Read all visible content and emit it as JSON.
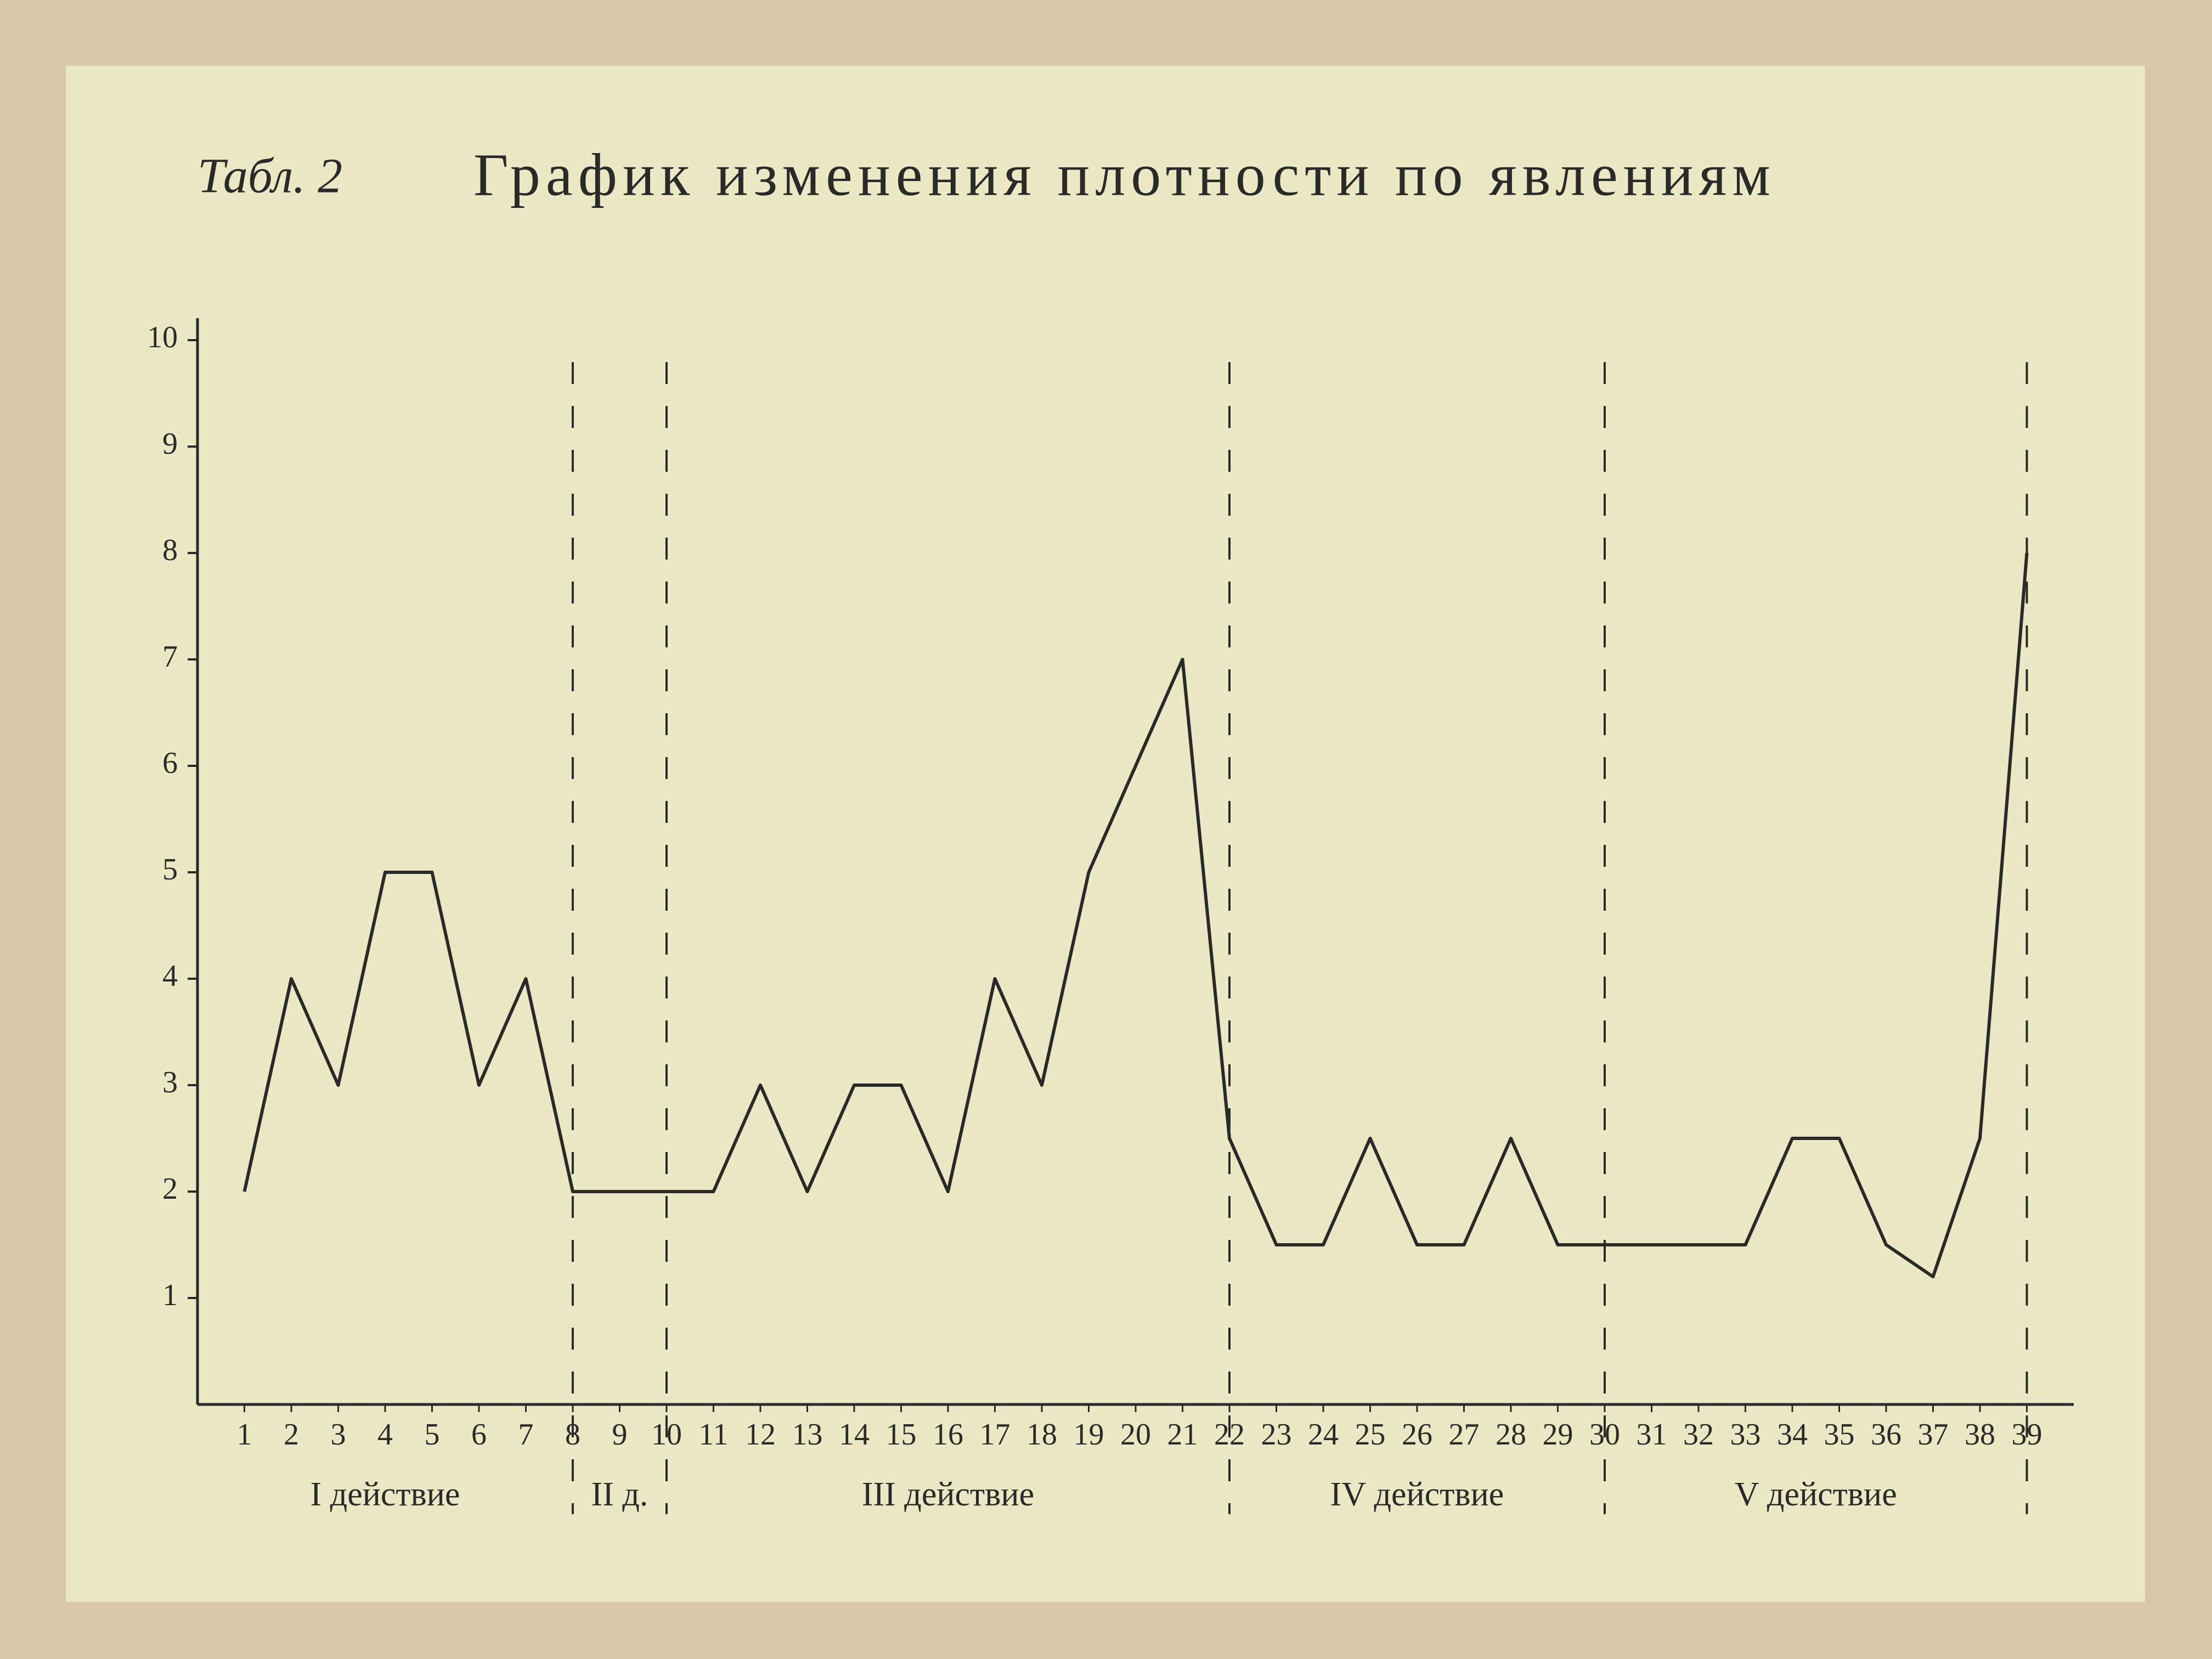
{
  "chart_data": {
    "type": "line",
    "title": "График изменения плотности по явлениям",
    "table_label": "Табл. 2",
    "x": [
      1,
      2,
      3,
      4,
      5,
      6,
      7,
      8,
      9,
      10,
      11,
      12,
      13,
      14,
      15,
      16,
      17,
      18,
      19,
      20,
      21,
      22,
      23,
      24,
      25,
      26,
      27,
      28,
      29,
      30,
      31,
      32,
      33,
      34,
      35,
      36,
      37,
      38,
      39
    ],
    "series": [
      {
        "color": "#2a2a28",
        "values": [
          2,
          4,
          3,
          5,
          5,
          3,
          4,
          2,
          2,
          2,
          2,
          3,
          2,
          3,
          3,
          2,
          4,
          3,
          5,
          6,
          7,
          2.5,
          1.5,
          1.5,
          2.5,
          1.5,
          1.5,
          2.5,
          1.5,
          1.5,
          1.5,
          1.5,
          1.5,
          2.5,
          2.5,
          1.5,
          1.2,
          2.5,
          8
        ]
      }
    ],
    "xlim": [
      0,
      40
    ],
    "xticks": [
      1,
      2,
      3,
      4,
      5,
      6,
      7,
      8,
      9,
      10,
      11,
      12,
      13,
      14,
      15,
      16,
      17,
      18,
      19,
      20,
      21,
      22,
      23,
      24,
      25,
      26,
      27,
      28,
      29,
      30,
      31,
      32,
      33,
      34,
      35,
      36,
      37,
      38,
      39
    ],
    "ylim": [
      0,
      10
    ],
    "yticks": [
      1,
      2,
      3,
      4,
      5,
      6,
      7,
      8,
      9,
      10
    ],
    "acts": [
      {
        "label": "I действие",
        "end": 8
      },
      {
        "label": "II д.",
        "end": 10
      },
      {
        "label": "III действие",
        "end": 22
      },
      {
        "label": "IV действие",
        "end": 30
      },
      {
        "label": "V действие",
        "end": 39
      }
    ]
  }
}
